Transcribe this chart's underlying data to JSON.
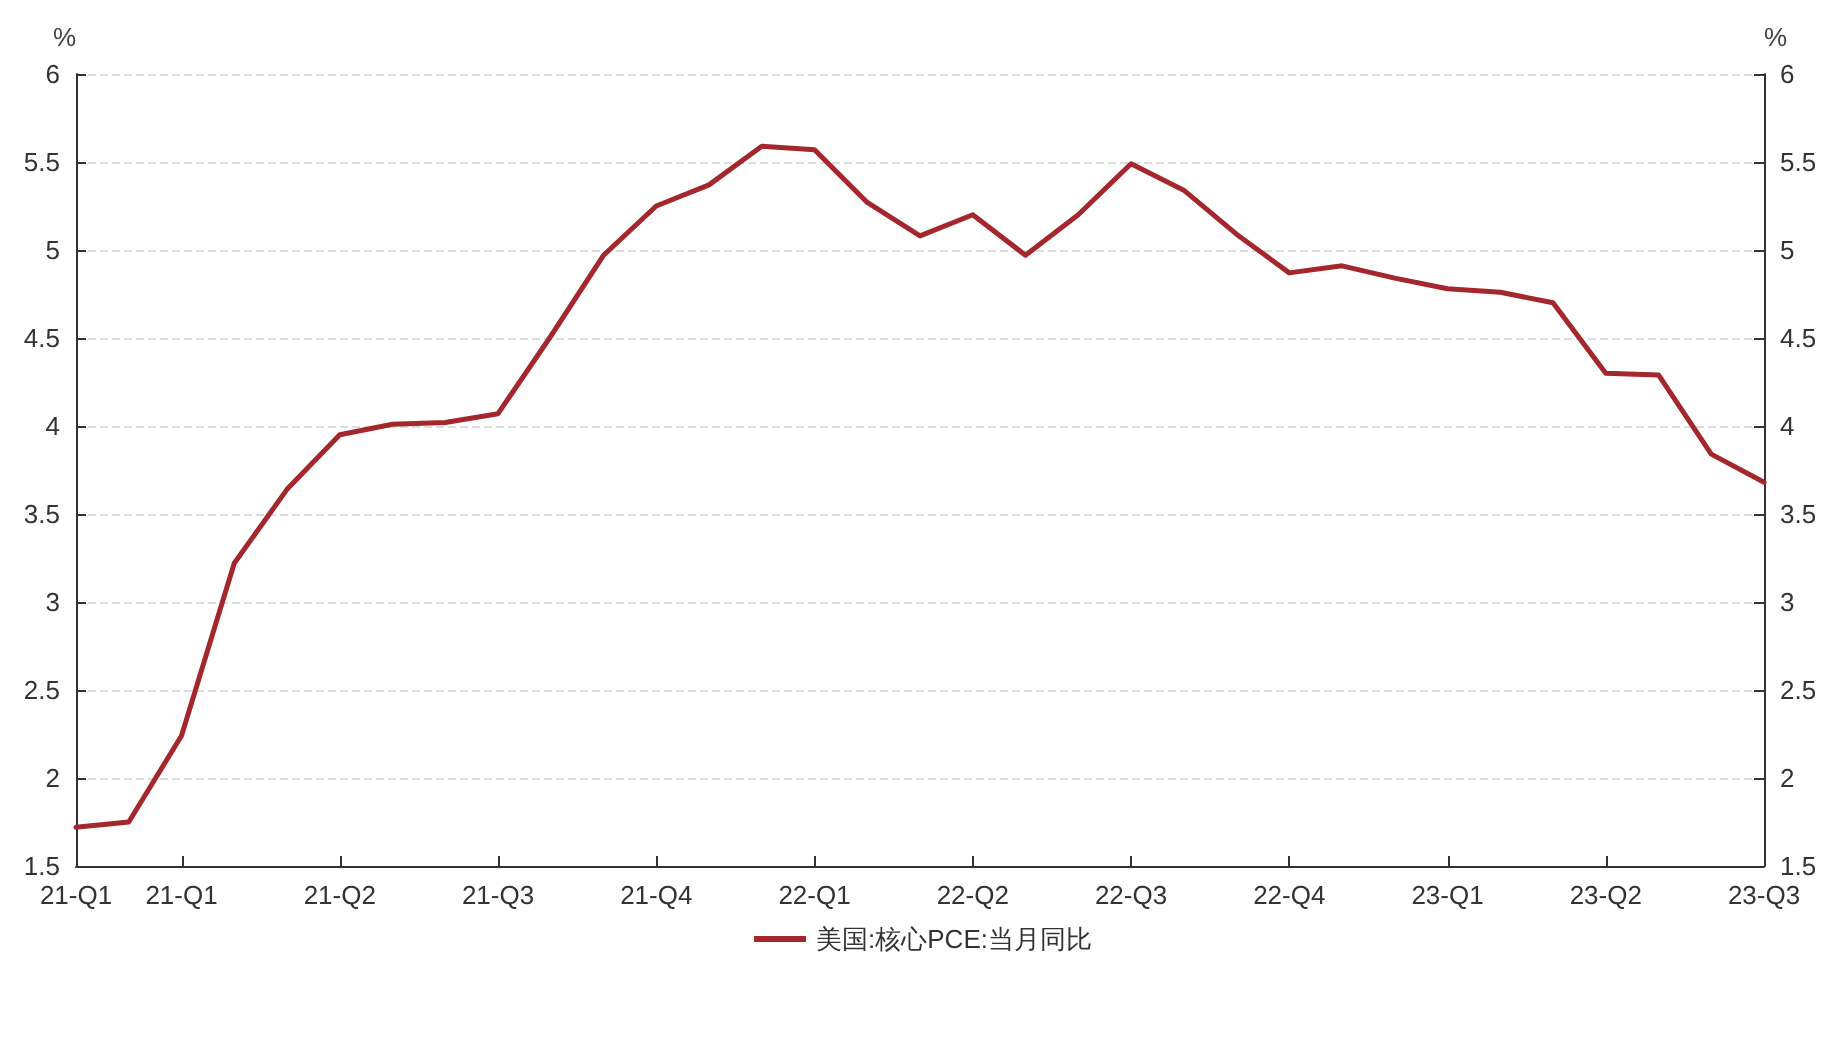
{
  "chart_data": {
    "type": "line",
    "ylabel": "%",
    "y2label": "%",
    "categories": [
      "21-Q1",
      null,
      "21-Q1",
      null,
      null,
      "21-Q2",
      null,
      null,
      "21-Q3",
      null,
      null,
      "21-Q4",
      null,
      null,
      "22-Q1",
      null,
      null,
      "22-Q2",
      null,
      null,
      "22-Q3",
      null,
      null,
      "22-Q4",
      null,
      null,
      "23-Q1",
      null,
      null,
      "23-Q2",
      null,
      null,
      "23-Q3"
    ],
    "series": [
      {
        "name": "美国:核心PCE:当月同比",
        "color": "#a3272d",
        "values": [
          1.72,
          1.75,
          2.24,
          3.22,
          3.64,
          3.95,
          4.01,
          4.02,
          4.07,
          4.51,
          4.97,
          5.25,
          5.37,
          5.59,
          5.57,
          5.27,
          5.08,
          5.2,
          4.97,
          5.2,
          5.49,
          5.34,
          5.09,
          4.87,
          4.91,
          4.84,
          4.78,
          4.76,
          4.7,
          4.3,
          4.29,
          3.84,
          3.68
        ]
      }
    ],
    "ylim": [
      1.5,
      6
    ],
    "yticks": [
      1.5,
      2,
      2.5,
      3,
      3.5,
      4,
      4.5,
      5,
      5.5,
      6
    ],
    "y2lim": [
      1.5,
      6
    ],
    "y2ticks": [
      1.5,
      2,
      2.5,
      3,
      3.5,
      4,
      4.5,
      5,
      5.5,
      6
    ],
    "grid": "y",
    "legend": "bottom",
    "marker": "none",
    "line_style": "solid"
  }
}
